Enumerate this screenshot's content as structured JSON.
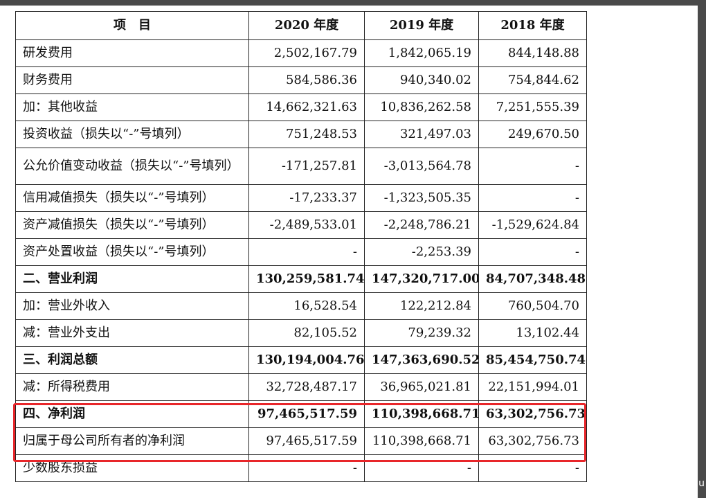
{
  "table": {
    "headers": [
      "项　目",
      "2020 年度",
      "2019 年度",
      "2018 年度"
    ],
    "rows": [
      {
        "label": "研发费用",
        "v2020": "2,502,167.79",
        "v2019": "1,842,065.19",
        "v2018": "844,148.88",
        "bold": false
      },
      {
        "label": "财务费用",
        "v2020": "584,586.36",
        "v2019": "940,340.02",
        "v2018": "754,844.62",
        "bold": false
      },
      {
        "label": "加：其他收益",
        "v2020": "14,662,321.63",
        "v2019": "10,836,262.58",
        "v2018": "7,251,555.39",
        "bold": false
      },
      {
        "label": "投资收益（损失以“-”号填列）",
        "v2020": "751,248.53",
        "v2019": "321,497.03",
        "v2018": "249,670.50",
        "bold": false
      },
      {
        "label": "公允价值变动收益（损失以“-”号填列）",
        "v2020": "-171,257.81",
        "v2019": "-3,013,564.78",
        "v2018": "-",
        "bold": false
      },
      {
        "label": "信用减值损失（损失以“-”号填列）",
        "v2020": "-17,233.37",
        "v2019": "-1,323,505.35",
        "v2018": "-",
        "bold": false
      },
      {
        "label": "资产减值损失（损失以“-”号填列）",
        "v2020": "-2,489,533.01",
        "v2019": "-2,248,786.21",
        "v2018": "-1,529,624.84",
        "bold": false
      },
      {
        "label": "资产处置收益（损失以“-”号填列）",
        "v2020": "-",
        "v2019": "-2,253.39",
        "v2018": "-",
        "bold": false
      },
      {
        "label": "二、营业利润",
        "v2020": "130,259,581.74",
        "v2019": "147,320,717.00",
        "v2018": "84,707,348.48",
        "bold": true
      },
      {
        "label": "加：营业外收入",
        "v2020": "16,528.54",
        "v2019": "122,212.84",
        "v2018": "760,504.70",
        "bold": false
      },
      {
        "label": "减：营业外支出",
        "v2020": "82,105.52",
        "v2019": "79,239.32",
        "v2018": "13,102.44",
        "bold": false
      },
      {
        "label": "三、利润总额",
        "v2020": "130,194,004.76",
        "v2019": "147,363,690.52",
        "v2018": "85,454,750.74",
        "bold": true
      },
      {
        "label": "减：所得税费用",
        "v2020": "32,728,487.17",
        "v2019": "36,965,021.81",
        "v2018": "22,151,994.01",
        "bold": false
      },
      {
        "label": "四、净利润",
        "v2020": "97,465,517.59",
        "v2019": "110,398,668.71",
        "v2018": "63,302,756.73",
        "bold": true
      },
      {
        "label": "归属于母公司所有者的净利润",
        "v2020": "97,465,517.59",
        "v2019": "110,398,668.71",
        "v2018": "63,302,756.73",
        "bold": false
      },
      {
        "label": "少数股东损益",
        "v2020": "-",
        "v2019": "-",
        "v2018": "-",
        "bold": false
      }
    ]
  },
  "highlight_color": "#e8262a",
  "edge_char": "u"
}
